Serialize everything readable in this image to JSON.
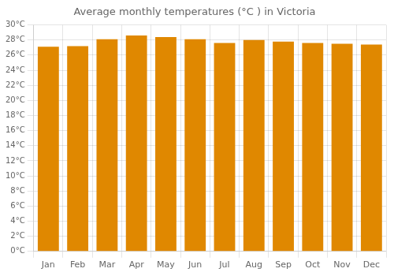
{
  "chart_data": {
    "type": "bar",
    "title": "Average monthly temperatures (°C ) in Victoria",
    "categories": [
      "Jan",
      "Feb",
      "Mar",
      "Apr",
      "May",
      "Jun",
      "Jul",
      "Aug",
      "Sep",
      "Oct",
      "Nov",
      "Dec"
    ],
    "values": [
      27.1,
      27.2,
      28.1,
      28.6,
      28.4,
      28.1,
      27.6,
      28.0,
      27.8,
      27.6,
      27.5,
      27.4
    ],
    "color": "#E08800",
    "ylim": [
      0,
      30
    ],
    "yticks": [
      {
        "value": 0,
        "label": "0°C"
      },
      {
        "value": 2,
        "label": "2°C"
      },
      {
        "value": 4,
        "label": "4°C"
      },
      {
        "value": 6,
        "label": "6°C"
      },
      {
        "value": 8,
        "label": "8°C"
      },
      {
        "value": 10,
        "label": "10°C"
      },
      {
        "value": 12,
        "label": "12°C"
      },
      {
        "value": 14,
        "label": "14°C"
      },
      {
        "value": 16,
        "label": "16°C"
      },
      {
        "value": 18,
        "label": "18°C"
      },
      {
        "value": 20,
        "label": "20°C"
      },
      {
        "value": 22,
        "label": "22°C"
      },
      {
        "value": 24,
        "label": "24°C"
      },
      {
        "value": 26,
        "label": "26°C"
      },
      {
        "value": 28,
        "label": "28°C"
      },
      {
        "value": 30,
        "label": "30°C"
      }
    ],
    "grid": true
  }
}
